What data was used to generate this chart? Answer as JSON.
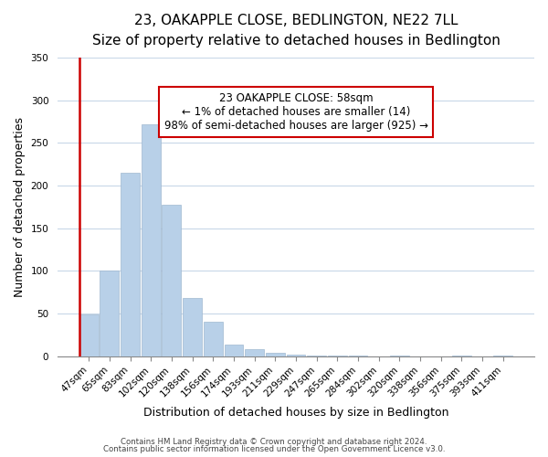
{
  "title": "23, OAKAPPLE CLOSE, BEDLINGTON, NE22 7LL",
  "subtitle": "Size of property relative to detached houses in Bedlington",
  "xlabel": "Distribution of detached houses by size in Bedlington",
  "ylabel": "Number of detached properties",
  "bar_labels": [
    "47sqm",
    "65sqm",
    "83sqm",
    "102sqm",
    "120sqm",
    "138sqm",
    "156sqm",
    "174sqm",
    "193sqm",
    "211sqm",
    "229sqm",
    "247sqm",
    "265sqm",
    "284sqm",
    "302sqm",
    "320sqm",
    "338sqm",
    "356sqm",
    "375sqm",
    "393sqm",
    "411sqm"
  ],
  "bar_values": [
    49,
    100,
    215,
    272,
    178,
    68,
    40,
    14,
    8,
    4,
    2,
    1,
    1,
    0.5,
    0,
    0.5,
    0,
    0,
    0.5,
    0,
    1
  ],
  "bar_color_normal": "#b8d0e8",
  "bar_color_highlight": "#b8d0e8",
  "highlight_index": 0,
  "ylim": [
    0,
    350
  ],
  "yticks": [
    0,
    50,
    100,
    150,
    200,
    250,
    300,
    350
  ],
  "annotation_line1": "23 OAKAPPLE CLOSE: 58sqm",
  "annotation_line2": "← 1% of detached houses are smaller (14)",
  "annotation_line3": "98% of semi-detached houses are larger (925) →",
  "footer1": "Contains HM Land Registry data © Crown copyright and database right 2024.",
  "footer2": "Contains public sector information licensed under the Open Government Licence v3.0.",
  "bg_color": "#ffffff",
  "grid_color": "#c8d8e8",
  "title_fontsize": 11,
  "subtitle_fontsize": 9.5,
  "label_fontsize": 9,
  "tick_fontsize": 7.5,
  "annotation_box_edgecolor": "#cc0000",
  "annotation_box_facecolor": "#ffffff",
  "red_line_color": "#cc0000"
}
